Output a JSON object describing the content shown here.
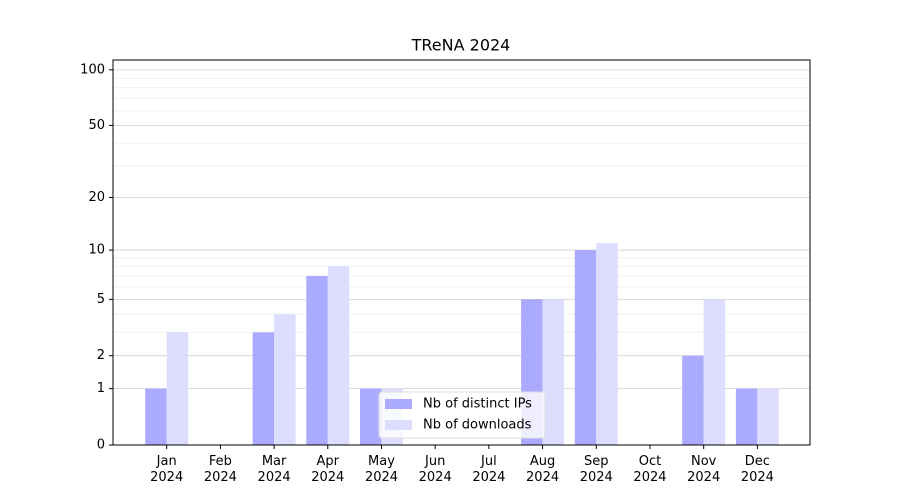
{
  "chart_data": {
    "type": "bar",
    "title": "TReNA 2024",
    "categories": [
      "Jan\n2024",
      "Feb\n2024",
      "Mar\n2024",
      "Apr\n2024",
      "May\n2024",
      "Jun\n2024",
      "Jul\n2024",
      "Aug\n2024",
      "Sep\n2024",
      "Oct\n2024",
      "Nov\n2024",
      "Dec\n2024"
    ],
    "series": [
      {
        "name": "Nb of distinct IPs",
        "color": "#aaaaff",
        "values": [
          1,
          0,
          3,
          7,
          1,
          0,
          0,
          5,
          10,
          0,
          2,
          1
        ]
      },
      {
        "name": "Nb of downloads",
        "color": "#ddddff",
        "values": [
          3,
          0,
          4,
          8,
          1,
          0,
          0,
          5,
          11,
          0,
          5,
          1
        ]
      }
    ],
    "yscale": "log1p",
    "ylim": [
      0,
      113
    ],
    "yticks": [
      0,
      1,
      2,
      5,
      10,
      20,
      50,
      100
    ],
    "yminorticks": [
      3,
      4,
      6,
      7,
      8,
      9,
      30,
      40,
      60,
      70,
      80,
      90
    ],
    "grid": true,
    "legend": "lower center"
  }
}
